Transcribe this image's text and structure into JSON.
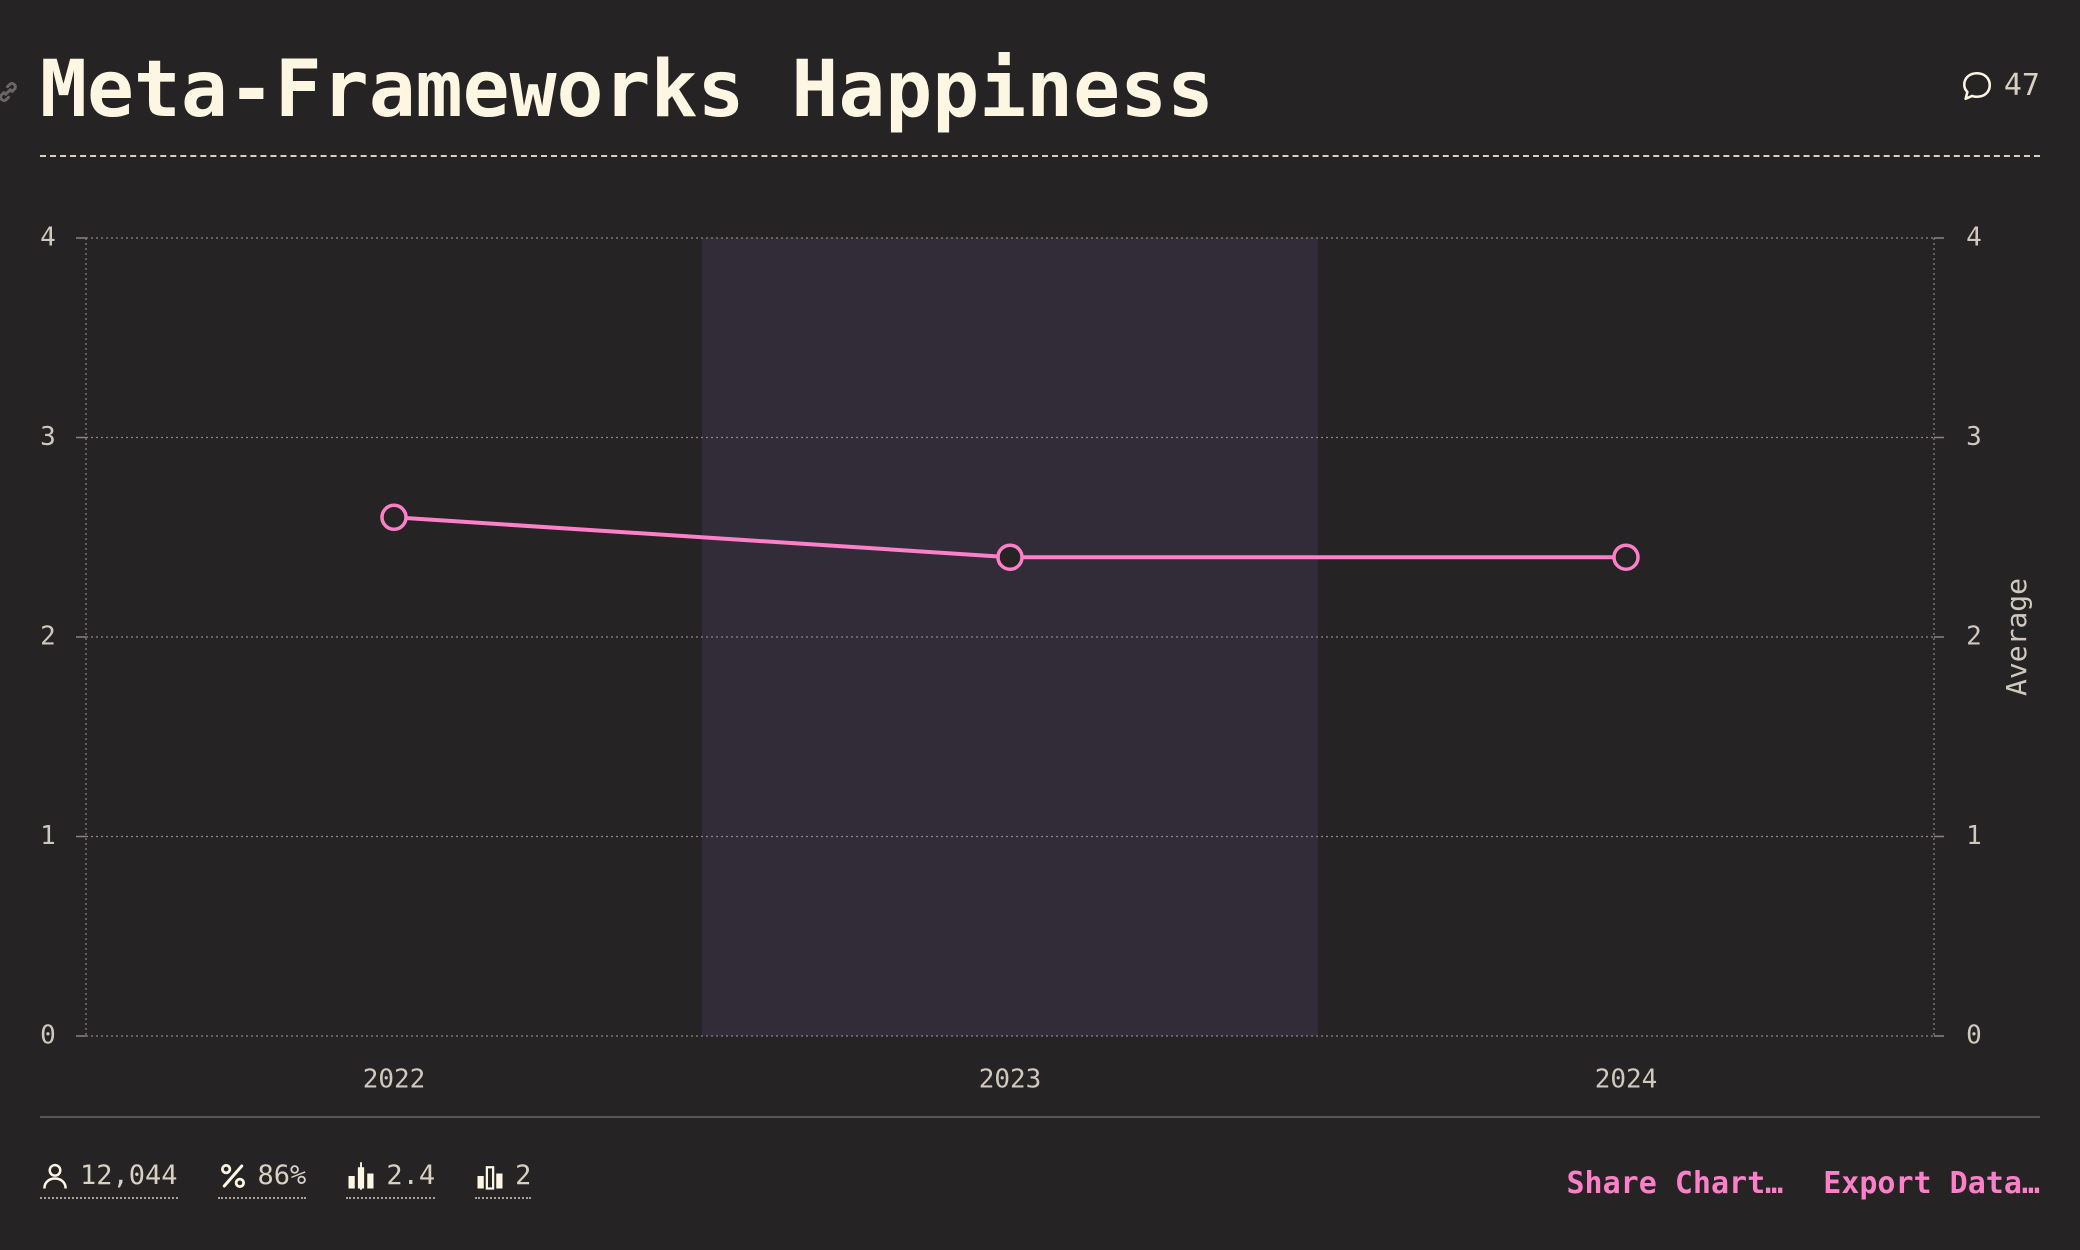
{
  "header": {
    "title": "Meta-Frameworks Happiness",
    "comment_count": "47"
  },
  "chart_data": {
    "type": "line",
    "title": "Meta-Frameworks Happiness",
    "x": [
      "2022",
      "2023",
      "2024"
    ],
    "series": [
      {
        "values": [
          2.6,
          2.4,
          2.4
        ]
      }
    ],
    "highlighted_category": "2023",
    "ylabel": "Average",
    "ylim": [
      0,
      4
    ],
    "yticks": [
      "0",
      "1",
      "2",
      "3",
      "4"
    ],
    "grid": true,
    "colors": {
      "line": "#ff7fc8",
      "highlight": "#312c38"
    }
  },
  "footer": {
    "stats": [
      {
        "icon": "user-icon",
        "value": "12,044"
      },
      {
        "icon": "percent-icon",
        "value": "86%"
      },
      {
        "icon": "average-bars-icon",
        "value": "2.4"
      },
      {
        "icon": "median-bars-icon",
        "value": "2"
      }
    ],
    "share_label": "Share Chart…",
    "export_label": "Export Data…"
  }
}
